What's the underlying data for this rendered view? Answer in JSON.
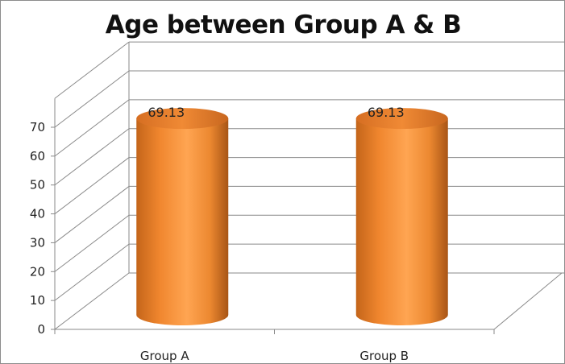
{
  "chart_data": {
    "type": "bar",
    "style": "3d-cylinder",
    "title": "Age between Group A & B",
    "categories": [
      "Group A",
      "Group B"
    ],
    "series": [
      {
        "values": [
          69.13,
          69.13
        ],
        "color": "#f7933a"
      }
    ],
    "data_labels": [
      "69.13",
      "69.13"
    ],
    "y_ticks": [
      "0",
      "10",
      "20",
      "30",
      "40",
      "50",
      "60",
      "70"
    ],
    "ylim": [
      0,
      70
    ],
    "xlabel": "",
    "ylabel": "",
    "grid": true,
    "legend": "none"
  }
}
